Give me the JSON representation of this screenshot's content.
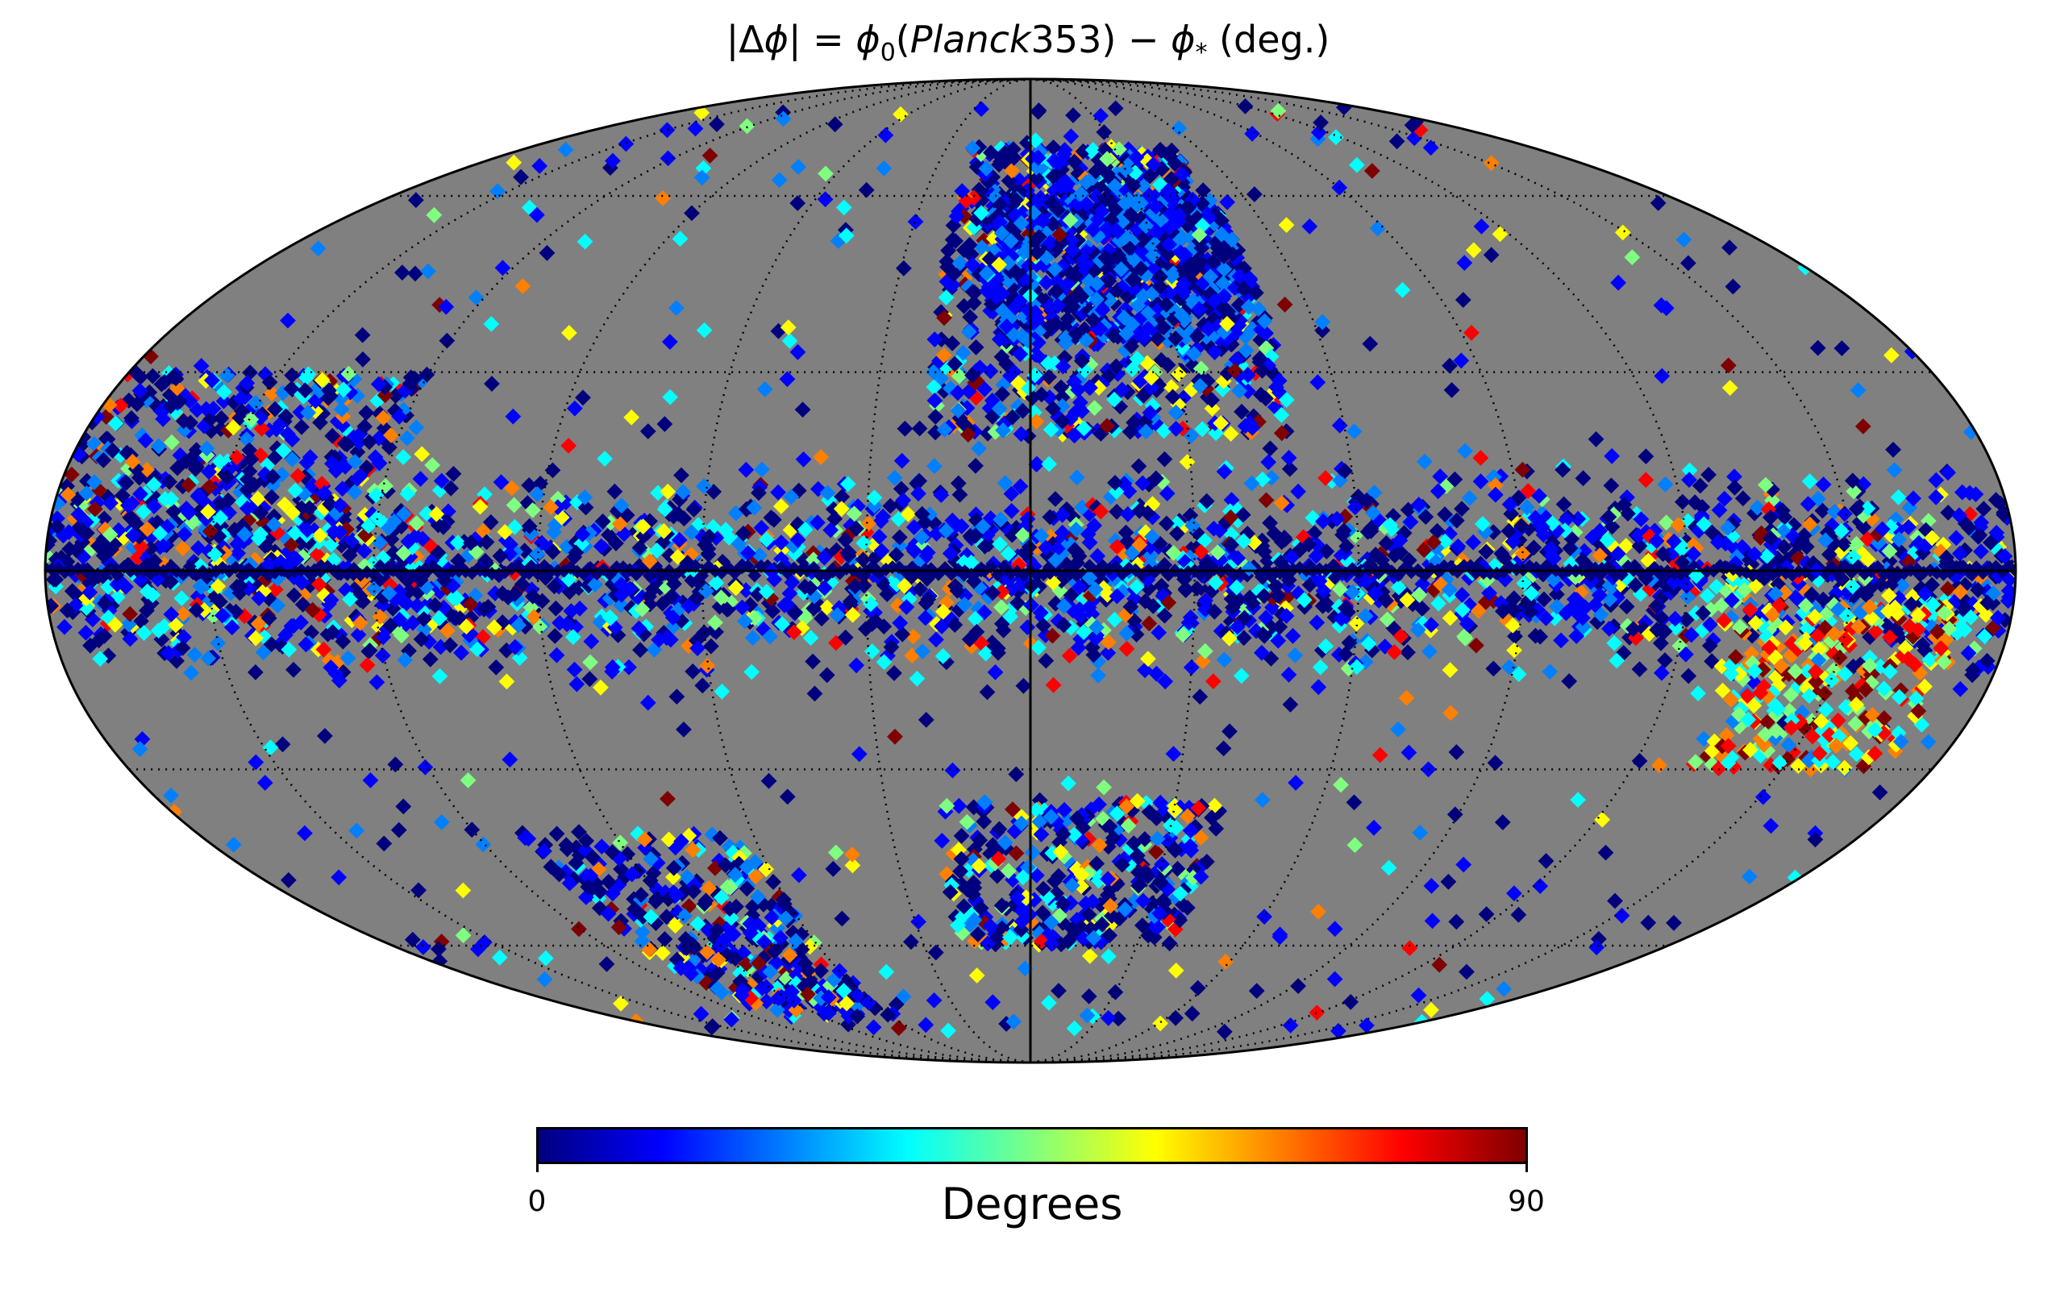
{
  "title": {
    "prefix": "|Δ",
    "phi": "ϕ",
    "mid": "| = ",
    "sub0": "0",
    "paren_open": "(",
    "planck": "Planck",
    "num": "353",
    "paren_close": ") − ",
    "sub_star": "*",
    "suffix": " (deg.)"
  },
  "colorbar": {
    "label": "Degrees",
    "min_label": "0",
    "max_label": "90",
    "range": [
      0,
      90
    ],
    "colormap": "jet"
  },
  "map": {
    "projection": "Mollweide",
    "graticule": "dotted",
    "background_color": "#808080",
    "outline_color": "#000000",
    "axis_lines": "solid equator and central meridian"
  },
  "colors": {
    "masked": "#808080",
    "jet_stops": [
      "#00007f",
      "#0000ff",
      "#007fff",
      "#00ffff",
      "#7fff7f",
      "#ffff00",
      "#ff7f00",
      "#ff0000",
      "#7f0000"
    ]
  }
}
